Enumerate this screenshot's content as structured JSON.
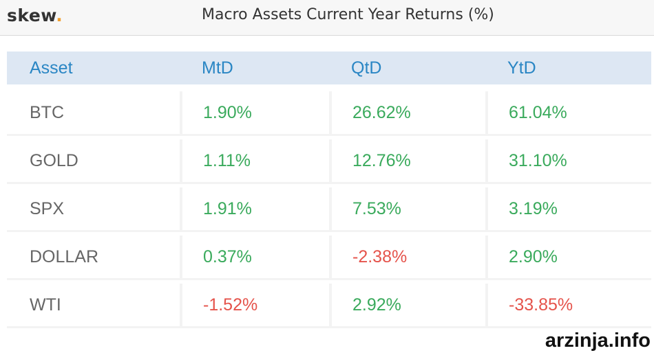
{
  "header": {
    "logo": "skew",
    "logo_dot": ".",
    "title": "Macro Assets Current Year Returns (%)"
  },
  "table": {
    "columns": [
      "Asset",
      "MtD",
      "QtD",
      "YtD"
    ],
    "rows": [
      [
        "BTC",
        "1.90%",
        "26.62%",
        "61.04%"
      ],
      [
        "GOLD",
        "1.11%",
        "12.76%",
        "31.10%"
      ],
      [
        "SPX",
        "1.91%",
        "7.53%",
        "3.19%"
      ],
      [
        "DOLLAR",
        "0.37%",
        "-2.38%",
        "2.90%"
      ],
      [
        "WTI",
        "-1.52%",
        "2.92%",
        "-33.85%"
      ]
    ]
  },
  "watermark": "arzinja.info"
}
